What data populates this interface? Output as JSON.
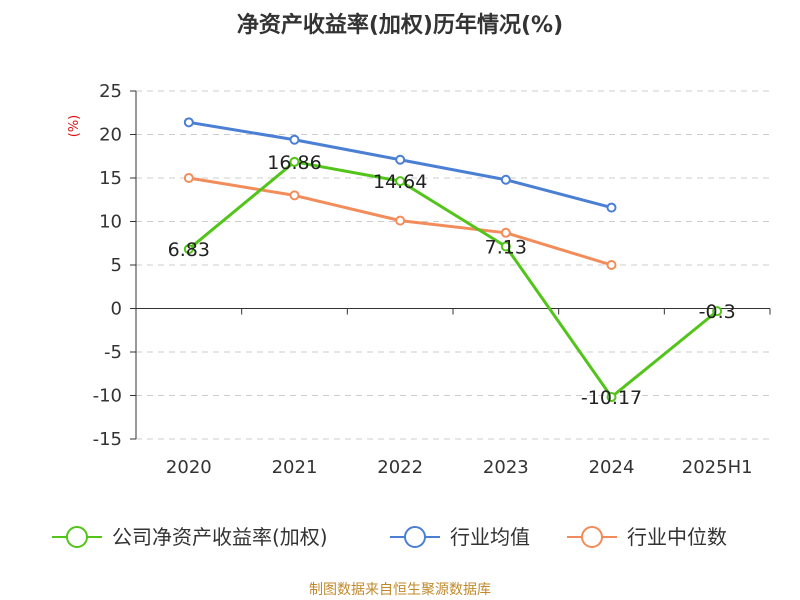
{
  "chart_data": {
    "type": "line",
    "title": "净资产收益率(加权)历年情况(%)",
    "ylabel": "(%)",
    "categories": [
      "2020",
      "2021",
      "2022",
      "2023",
      "2024",
      "2025H1"
    ],
    "ylim": [
      -15,
      25
    ],
    "yticks": [
      25,
      20,
      15,
      10,
      5,
      0,
      -5,
      -10,
      -15
    ],
    "grid": true,
    "legend_position": "bottom",
    "series": [
      {
        "name": "公司净资产收益率(加权)",
        "color": "#52c41a",
        "values": [
          6.83,
          16.86,
          14.64,
          7.13,
          -10.17,
          -0.3
        ],
        "labels": [
          "6.83",
          "16.86",
          "14.64",
          "7.13",
          "-10.17",
          "-0.3"
        ]
      },
      {
        "name": "行业均值",
        "color": "#4a7fd4",
        "values": [
          21.4,
          19.4,
          17.1,
          14.8,
          11.6,
          null
        ]
      },
      {
        "name": "行业中位数",
        "color": "#f28c5a",
        "values": [
          15.0,
          13.0,
          10.1,
          8.7,
          5.0,
          null
        ]
      }
    ]
  },
  "source_text": "制图数据来自恒生聚源数据库"
}
